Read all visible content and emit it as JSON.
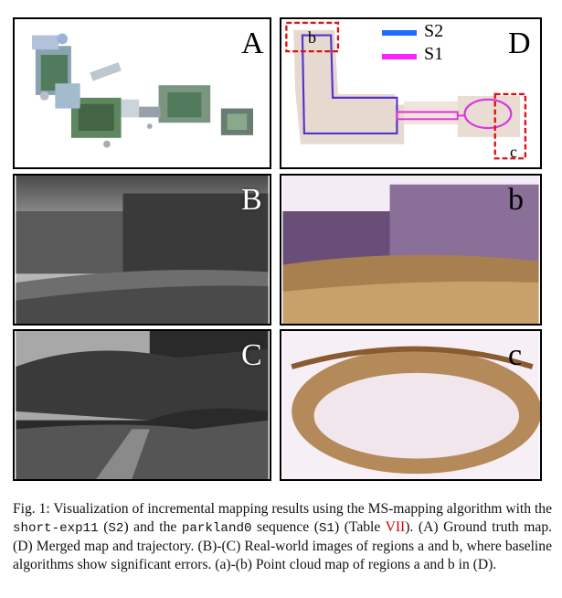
{
  "panels": {
    "A": {
      "label": "A"
    },
    "B": {
      "label": "B"
    },
    "C": {
      "label": "C"
    },
    "D": {
      "label": "D",
      "legend": [
        {
          "name": "S2",
          "color": "#1f6bff"
        },
        {
          "name": "S1",
          "color": "#ff22ff"
        }
      ],
      "region_a_tag": "b",
      "region_b_tag": "c",
      "highlight_color": "#e01010"
    },
    "b": {
      "label": "b"
    },
    "c": {
      "label": "c"
    }
  },
  "caption": {
    "prefix": "Fig. 1: Visualization of incremental mapping results using the MS-mapping algorithm with the ",
    "seq1": "short-exp11",
    "paren1_open": " (",
    "seq1_tag": "S2",
    "paren1_close": ") and the ",
    "seq2": "parkland0",
    "mid": " sequence (",
    "seq2_tag": "S1",
    "paren2_close": ") (Table ",
    "table_ref": "VII",
    "rest": "). (A) Ground truth map. (D) Merged map and trajectory. (B)-(C) Real-world images of regions a and b, where baseline algorithms show significant errors. (a)-(b) Point cloud map of regions a and b in (D)."
  }
}
